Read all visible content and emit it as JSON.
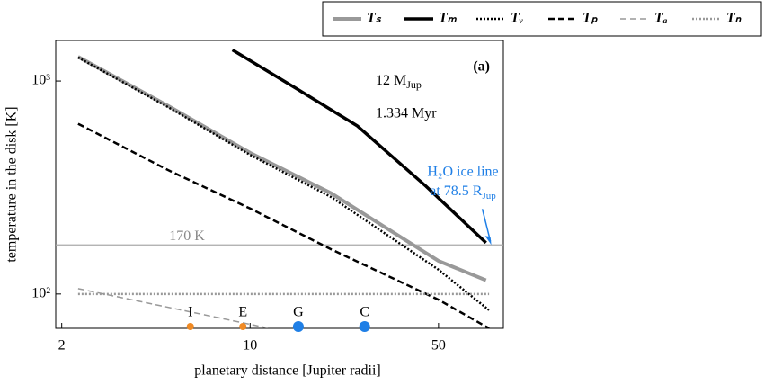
{
  "chart_data": {
    "type": "line",
    "xlabel": "planetary distance [Jupiter radii]",
    "ylabel": "temperature in the disk [K]",
    "xscale": "log",
    "yscale": "log",
    "xlim": [
      1.9,
      87
    ],
    "ylim": [
      69,
      1550
    ],
    "xticks": [
      2,
      10,
      50
    ],
    "yticks": [
      {
        "value": 100,
        "label": "10²"
      },
      {
        "value": 1000,
        "label": "10³"
      }
    ],
    "series": [
      {
        "name": "Tₛ",
        "color": "#999999",
        "linestyle": "solid",
        "linewidth": 4,
        "x": [
          2.3,
          5,
          10,
          20,
          50,
          75
        ],
        "values": [
          1300,
          760,
          460,
          297,
          143,
          116
        ]
      },
      {
        "name": "Tₘ",
        "color": "#000000",
        "linestyle": "solid",
        "linewidth": 3.5,
        "x": [
          8.6,
          15,
          25,
          45,
          75
        ],
        "values": [
          1400,
          915,
          615,
          320,
          174
        ]
      },
      {
        "name": "Tᵥ",
        "color": "#000000",
        "linestyle": "dotted",
        "linewidth": 2.5,
        "x": [
          2.3,
          5,
          10,
          20,
          50,
          77
        ],
        "values": [
          1290,
          750,
          450,
          285,
          130,
          84
        ]
      },
      {
        "name": "Tₚ",
        "color": "#000000",
        "linestyle": "dashed",
        "linewidth": 2.5,
        "x": [
          2.3,
          5,
          10,
          20,
          50,
          77
        ],
        "values": [
          630,
          380,
          252,
          162,
          94,
          69
        ]
      },
      {
        "name": "Tₐ",
        "color": "#999999",
        "linestyle": "dashed",
        "linewidth": 1.5,
        "x": [
          2.3,
          11.8
        ],
        "values": [
          106,
          69
        ]
      },
      {
        "name": "Tₙ",
        "color": "#999999",
        "linestyle": "dotted",
        "linewidth": 2.5,
        "x": [
          2.3,
          77
        ],
        "values": [
          100,
          100
        ]
      }
    ],
    "hline": {
      "value": 170,
      "label": "170 K",
      "color": "#aaaaaa"
    },
    "moons": {
      "labels": [
        "I",
        "E",
        "G",
        "C"
      ],
      "x": [
        6.0,
        9.4,
        15.1,
        26.6
      ],
      "colors": [
        "#f08a24",
        "#f08a24",
        "#1f7fe6",
        "#1f7fe6"
      ]
    },
    "panel_label": "(a)",
    "mass_label": {
      "text": "12 M",
      "sub": "Jup"
    },
    "time_label": "1.334 Myr",
    "ice_line": {
      "line1": "H₂O ice line",
      "line2": "at 78.5 R",
      "sub": "Jup",
      "x": 78.5,
      "value": 170,
      "color": "#1f7fe6"
    }
  }
}
